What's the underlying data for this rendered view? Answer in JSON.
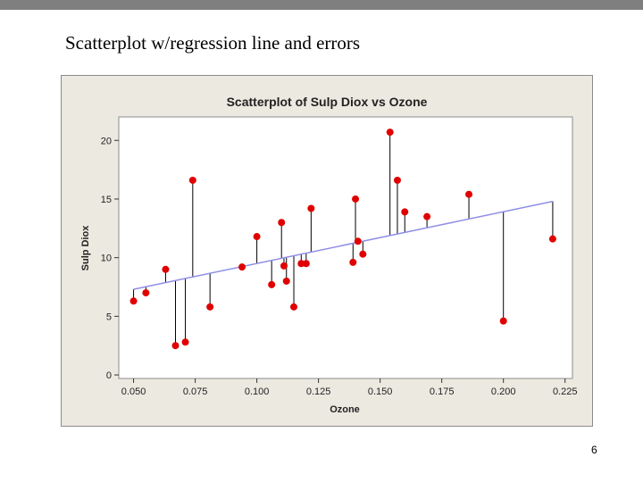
{
  "slide": {
    "title": "Scatterplot w/regression line and errors",
    "page_number": "6"
  },
  "colors": {
    "top_bar": "#7f7f7f",
    "chart_background": "#ece9e1",
    "plot_background": "#ffffff",
    "point": "#e00000",
    "regression_line": "#8f8fe6",
    "residual_line": "#000000"
  },
  "chart_data": {
    "type": "scatter",
    "title": "Scatterplot of Sulp Diox vs Ozone",
    "xlabel": "Ozone",
    "ylabel": "Sulp Diox",
    "xlim": [
      0.044,
      0.228
    ],
    "ylim": [
      -0.3,
      22.0
    ],
    "xticks": [
      "0.050",
      "0.075",
      "0.100",
      "0.125",
      "0.150",
      "0.175",
      "0.200",
      "0.225"
    ],
    "yticks": [
      "0",
      "5",
      "10",
      "15",
      "20"
    ],
    "grid": false,
    "legend": "none",
    "regression_line": {
      "x": [
        0.05,
        0.22
      ],
      "y": [
        7.3,
        14.8
      ]
    },
    "residual_lines": true,
    "points": [
      {
        "x": 0.05,
        "y": 6.3
      },
      {
        "x": 0.055,
        "y": 7.0
      },
      {
        "x": 0.063,
        "y": 9.0
      },
      {
        "x": 0.067,
        "y": 2.5
      },
      {
        "x": 0.071,
        "y": 2.8
      },
      {
        "x": 0.074,
        "y": 16.6
      },
      {
        "x": 0.081,
        "y": 5.8
      },
      {
        "x": 0.094,
        "y": 9.2
      },
      {
        "x": 0.1,
        "y": 11.8
      },
      {
        "x": 0.106,
        "y": 7.7
      },
      {
        "x": 0.11,
        "y": 13.0
      },
      {
        "x": 0.111,
        "y": 9.3
      },
      {
        "x": 0.112,
        "y": 8.0
      },
      {
        "x": 0.115,
        "y": 5.8
      },
      {
        "x": 0.118,
        "y": 9.5
      },
      {
        "x": 0.12,
        "y": 9.5
      },
      {
        "x": 0.122,
        "y": 14.2
      },
      {
        "x": 0.139,
        "y": 9.6
      },
      {
        "x": 0.14,
        "y": 15.0
      },
      {
        "x": 0.141,
        "y": 11.4
      },
      {
        "x": 0.143,
        "y": 10.3
      },
      {
        "x": 0.154,
        "y": 20.7
      },
      {
        "x": 0.157,
        "y": 16.6
      },
      {
        "x": 0.16,
        "y": 13.9
      },
      {
        "x": 0.169,
        "y": 13.5
      },
      {
        "x": 0.186,
        "y": 15.4
      },
      {
        "x": 0.2,
        "y": 4.6
      },
      {
        "x": 0.22,
        "y": 11.6
      }
    ]
  }
}
